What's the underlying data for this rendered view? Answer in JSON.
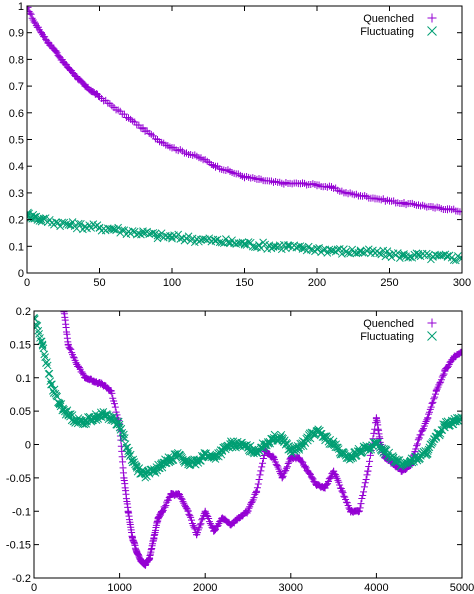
{
  "colors": {
    "quenched": "#9400D3",
    "fluctuating": "#009E73",
    "axis": "#000000"
  },
  "chart_data": [
    {
      "type": "scatter",
      "xlim": [
        0,
        300
      ],
      "ylim": [
        0,
        1
      ],
      "xticks": [
        "0",
        "50",
        "100",
        "150",
        "200",
        "250",
        "300"
      ],
      "yticks": [
        "0",
        "0.1",
        "0.2",
        "0.3",
        "0.4",
        "0.5",
        "0.6",
        "0.7",
        "0.8",
        "0.9",
        "1"
      ],
      "legend_position": "top-right",
      "series": [
        {
          "name": "Quenched",
          "marker": "plus",
          "color_key": "quenched",
          "x": [
            0,
            5,
            10,
            15,
            20,
            25,
            30,
            35,
            40,
            45,
            50,
            60,
            70,
            80,
            90,
            100,
            110,
            120,
            130,
            140,
            150,
            160,
            170,
            180,
            190,
            200,
            210,
            220,
            230,
            240,
            250,
            260,
            270,
            280,
            290,
            300
          ],
          "y": [
            1.0,
            0.94,
            0.9,
            0.86,
            0.83,
            0.79,
            0.76,
            0.73,
            0.7,
            0.68,
            0.66,
            0.62,
            0.58,
            0.54,
            0.5,
            0.47,
            0.45,
            0.43,
            0.4,
            0.38,
            0.36,
            0.35,
            0.34,
            0.335,
            0.335,
            0.33,
            0.32,
            0.3,
            0.29,
            0.28,
            0.27,
            0.26,
            0.255,
            0.245,
            0.24,
            0.23
          ]
        },
        {
          "name": "Fluctuating",
          "marker": "cross",
          "color_key": "fluctuating",
          "x": [
            0,
            5,
            10,
            20,
            30,
            40,
            50,
            60,
            70,
            80,
            90,
            100,
            110,
            120,
            130,
            140,
            150,
            160,
            170,
            180,
            190,
            200,
            210,
            220,
            230,
            240,
            250,
            260,
            270,
            280,
            290,
            300
          ],
          "y": [
            0.22,
            0.21,
            0.2,
            0.19,
            0.18,
            0.175,
            0.17,
            0.165,
            0.155,
            0.15,
            0.14,
            0.135,
            0.13,
            0.125,
            0.12,
            0.115,
            0.11,
            0.105,
            0.1,
            0.1,
            0.09,
            0.09,
            0.085,
            0.08,
            0.08,
            0.075,
            0.07,
            0.065,
            0.065,
            0.06,
            0.06,
            0.055
          ]
        }
      ]
    },
    {
      "type": "scatter",
      "xlim": [
        0,
        5000
      ],
      "ylim": [
        -0.2,
        0.2
      ],
      "xticks": [
        "0",
        "1000",
        "2000",
        "3000",
        "4000",
        "5000"
      ],
      "yticks": [
        "-0.2",
        "-0.15",
        "-0.1",
        "-0.05",
        "0",
        "0.05",
        "0.1",
        "0.15",
        "0.2"
      ],
      "legend_position": "top-right",
      "series": [
        {
          "name": "Quenched",
          "marker": "plus",
          "color_key": "quenched",
          "x": [
            350,
            400,
            500,
            600,
            700,
            800,
            900,
            1000,
            1050,
            1100,
            1150,
            1200,
            1250,
            1300,
            1350,
            1400,
            1450,
            1500,
            1600,
            1700,
            1800,
            1900,
            2000,
            2100,
            2200,
            2300,
            2400,
            2500,
            2600,
            2700,
            2800,
            2900,
            3000,
            3100,
            3200,
            3300,
            3400,
            3500,
            3600,
            3700,
            3800,
            3900,
            4000,
            4050,
            4100,
            4200,
            4300,
            4400,
            4500,
            4600,
            4700,
            4800,
            4900,
            5000
          ],
          "y": [
            0.2,
            0.15,
            0.12,
            0.1,
            0.095,
            0.09,
            0.08,
            0.03,
            -0.05,
            -0.1,
            -0.14,
            -0.16,
            -0.175,
            -0.18,
            -0.17,
            -0.14,
            -0.11,
            -0.1,
            -0.075,
            -0.075,
            -0.1,
            -0.135,
            -0.1,
            -0.13,
            -0.11,
            -0.12,
            -0.11,
            -0.1,
            -0.07,
            -0.01,
            -0.02,
            -0.05,
            -0.02,
            -0.02,
            -0.04,
            -0.06,
            -0.065,
            -0.04,
            -0.07,
            -0.1,
            -0.1,
            -0.04,
            0.04,
            0.0,
            -0.02,
            -0.03,
            -0.04,
            -0.03,
            0.01,
            0.04,
            0.08,
            0.11,
            0.13,
            0.14
          ]
        },
        {
          "name": "Fluctuating",
          "marker": "cross",
          "color_key": "fluctuating",
          "x": [
            0,
            100,
            200,
            300,
            400,
            500,
            600,
            700,
            800,
            900,
            1000,
            1100,
            1200,
            1300,
            1400,
            1500,
            1600,
            1700,
            1800,
            1900,
            2000,
            2100,
            2200,
            2300,
            2400,
            2500,
            2600,
            2700,
            2800,
            2900,
            3000,
            3100,
            3200,
            3300,
            3400,
            3500,
            3600,
            3700,
            3800,
            3900,
            4000,
            4100,
            4200,
            4300,
            4400,
            4500,
            4600,
            4700,
            4800,
            4900,
            5000
          ],
          "y": [
            0.19,
            0.15,
            0.09,
            0.06,
            0.045,
            0.035,
            0.035,
            0.04,
            0.045,
            0.04,
            0.03,
            -0.01,
            -0.035,
            -0.045,
            -0.04,
            -0.03,
            -0.02,
            -0.015,
            -0.03,
            -0.025,
            -0.015,
            -0.02,
            -0.01,
            0.0,
            0.0,
            -0.005,
            -0.01,
            0.0,
            0.01,
            0.01,
            -0.01,
            -0.005,
            0.01,
            0.02,
            0.01,
            0.0,
            -0.015,
            -0.02,
            -0.01,
            -0.005,
            0.0,
            -0.01,
            -0.02,
            -0.03,
            -0.025,
            -0.02,
            -0.01,
            0.01,
            0.03,
            0.035,
            0.04
          ]
        }
      ]
    }
  ]
}
